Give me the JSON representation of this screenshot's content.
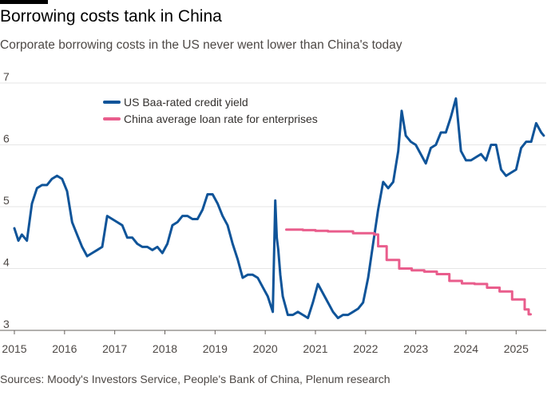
{
  "header": {
    "title": "Borrowing costs tank in China",
    "subtitle": "Corporate borrowing costs in the US never went lower than China's today"
  },
  "footer": {
    "source": "Sources: Moody's Investors Service, People's Bank of China, Plenum research"
  },
  "colors": {
    "us_series": "#0f5499",
    "china_series": "#e95d8c",
    "grid": "#e6e6e6",
    "axis": "#66605c"
  },
  "chart_data": {
    "type": "line",
    "title": "Borrowing costs tank in China",
    "xlabel": "",
    "ylabel": "",
    "xlim": [
      2015.0,
      2025.6
    ],
    "ylim": [
      3,
      7
    ],
    "grid": true,
    "legend_position": "top-left",
    "x_ticks": [
      2015,
      2016,
      2017,
      2018,
      2019,
      2020,
      2021,
      2022,
      2023,
      2024,
      2025
    ],
    "x_tick_labels": [
      "2015",
      "2016",
      "2017",
      "2018",
      "2019",
      "2020",
      "2021",
      "2022",
      "2023",
      "2024",
      "2025"
    ],
    "y_ticks": [
      3,
      4,
      5,
      6,
      7
    ],
    "y_tick_labels": [
      "3",
      "4",
      "5",
      "6",
      "7"
    ],
    "series": [
      {
        "name": "US Baa-rated credit yield",
        "color": "#0f5499",
        "x": [
          2015.0,
          2015.08,
          2015.15,
          2015.25,
          2015.35,
          2015.45,
          2015.55,
          2015.65,
          2015.75,
          2015.85,
          2015.95,
          2016.05,
          2016.15,
          2016.25,
          2016.35,
          2016.45,
          2016.55,
          2016.65,
          2016.75,
          2016.85,
          2016.95,
          2017.05,
          2017.15,
          2017.25,
          2017.35,
          2017.45,
          2017.55,
          2017.65,
          2017.75,
          2017.85,
          2017.95,
          2018.05,
          2018.15,
          2018.25,
          2018.35,
          2018.45,
          2018.55,
          2018.65,
          2018.75,
          2018.85,
          2018.95,
          2019.05,
          2019.15,
          2019.25,
          2019.35,
          2019.45,
          2019.55,
          2019.65,
          2019.75,
          2019.85,
          2019.95,
          2020.05,
          2020.15,
          2020.2,
          2020.23,
          2020.26,
          2020.3,
          2020.35,
          2020.45,
          2020.55,
          2020.65,
          2020.75,
          2020.85,
          2020.95,
          2021.05,
          2021.15,
          2021.25,
          2021.35,
          2021.45,
          2021.55,
          2021.65,
          2021.75,
          2021.85,
          2021.95,
          2022.05,
          2022.15,
          2022.25,
          2022.35,
          2022.45,
          2022.55,
          2022.65,
          2022.72,
          2022.8,
          2022.9,
          2023.0,
          2023.1,
          2023.2,
          2023.3,
          2023.4,
          2023.5,
          2023.6,
          2023.7,
          2023.8,
          2023.9,
          2024.0,
          2024.1,
          2024.2,
          2024.3,
          2024.4,
          2024.5,
          2024.6,
          2024.7,
          2024.8,
          2024.9,
          2025.0,
          2025.1,
          2025.2,
          2025.3,
          2025.4,
          2025.5,
          2025.55
        ],
        "values": [
          4.65,
          4.45,
          4.55,
          4.45,
          5.05,
          5.3,
          5.35,
          5.35,
          5.45,
          5.5,
          5.45,
          5.25,
          4.75,
          4.55,
          4.35,
          4.2,
          4.25,
          4.3,
          4.35,
          4.85,
          4.8,
          4.75,
          4.7,
          4.5,
          4.5,
          4.4,
          4.35,
          4.35,
          4.3,
          4.35,
          4.25,
          4.4,
          4.7,
          4.75,
          4.85,
          4.85,
          4.8,
          4.8,
          4.95,
          5.2,
          5.2,
          5.05,
          4.85,
          4.7,
          4.4,
          4.15,
          3.85,
          3.9,
          3.9,
          3.85,
          3.7,
          3.55,
          3.3,
          5.1,
          4.5,
          4.3,
          3.9,
          3.55,
          3.25,
          3.25,
          3.3,
          3.25,
          3.2,
          3.45,
          3.75,
          3.6,
          3.45,
          3.3,
          3.2,
          3.25,
          3.25,
          3.3,
          3.35,
          3.45,
          3.85,
          4.4,
          4.95,
          5.4,
          5.3,
          5.4,
          5.9,
          6.55,
          6.15,
          6.05,
          6.0,
          5.85,
          5.7,
          5.95,
          6.0,
          6.2,
          6.2,
          6.45,
          6.75,
          5.9,
          5.75,
          5.75,
          5.8,
          5.85,
          5.75,
          6.0,
          6.0,
          5.6,
          5.5,
          5.55,
          5.6,
          5.95,
          6.05,
          6.05,
          6.35,
          6.2,
          6.15
        ]
      },
      {
        "name": "China average loan rate for enterprises",
        "color": "#e95d8c",
        "step": true,
        "x": [
          2020.42,
          2020.75,
          2021.0,
          2021.25,
          2021.5,
          2021.75,
          2022.0,
          2022.17,
          2022.25,
          2022.42,
          2022.67,
          2022.92,
          2023.17,
          2023.42,
          2023.67,
          2023.92,
          2024.17,
          2024.42,
          2024.67,
          2024.92,
          2025.17,
          2025.25,
          2025.29
        ],
        "values": [
          4.63,
          4.62,
          4.61,
          4.6,
          4.6,
          4.57,
          4.57,
          4.55,
          4.36,
          4.14,
          4.0,
          3.97,
          3.95,
          3.91,
          3.8,
          3.76,
          3.75,
          3.69,
          3.63,
          3.5,
          3.34,
          3.26,
          3.26
        ]
      }
    ]
  }
}
